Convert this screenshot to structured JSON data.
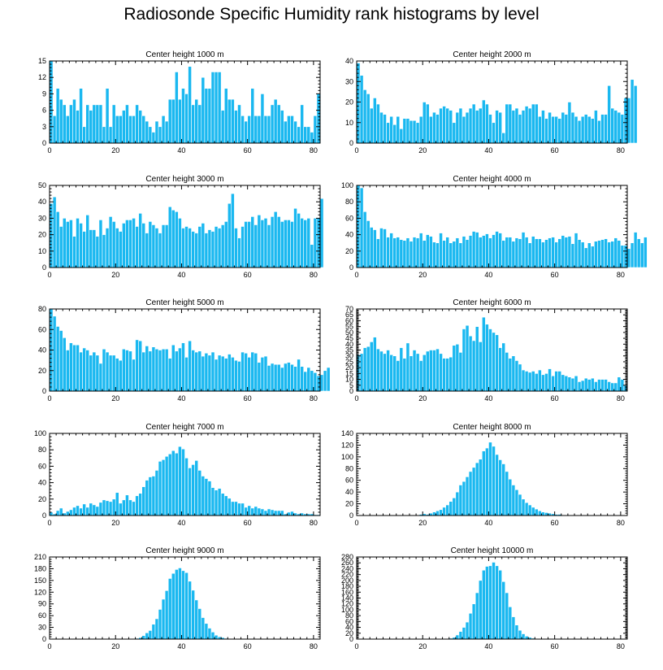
{
  "title": "Radiosonde Specific Humidity rank histograms by level",
  "colors": {
    "bar": "#1ab8f0",
    "bar_edge": "#ffffff",
    "axis": "#000000"
  },
  "chart_data": [
    {
      "type": "bar",
      "title": "Center height 1000 m",
      "xlabel": "",
      "ylabel": "",
      "xlim": [
        0,
        82
      ],
      "xticks": [
        0,
        20,
        40,
        60,
        80
      ],
      "ylim": [
        0,
        15
      ],
      "yticks": [
        0,
        3,
        6,
        9,
        12,
        15
      ],
      "values": [
        15,
        5,
        10,
        8,
        7,
        5,
        7,
        8,
        6,
        10,
        3,
        7,
        6,
        7,
        7,
        7,
        3,
        10,
        3,
        7,
        5,
        5,
        6,
        7,
        5,
        5,
        7,
        6,
        5,
        4,
        3,
        2,
        4,
        3,
        5,
        4,
        8,
        8,
        13,
        8,
        10,
        9,
        14,
        7,
        8,
        7,
        12,
        10,
        10,
        13,
        13,
        13,
        6,
        10,
        8,
        8,
        6,
        7,
        5,
        4,
        5,
        10,
        5,
        5,
        9,
        5,
        5,
        7,
        8,
        7,
        6,
        4,
        5,
        5,
        4,
        3,
        7,
        3,
        3,
        2,
        5,
        9
      ]
    },
    {
      "type": "bar",
      "title": "Center height 2000 m",
      "xlabel": "",
      "ylabel": "",
      "xlim": [
        0,
        82
      ],
      "xticks": [
        0,
        20,
        40,
        60,
        80
      ],
      "ylim": [
        0,
        40
      ],
      "yticks": [
        0,
        10,
        20,
        30,
        40
      ],
      "values": [
        39,
        33,
        26,
        24,
        17,
        22,
        19,
        15,
        14,
        10,
        13,
        9,
        13,
        7,
        12,
        12,
        11,
        11,
        10,
        13,
        20,
        19,
        13,
        15,
        14,
        17,
        18,
        17,
        16,
        10,
        15,
        17,
        13,
        15,
        17,
        19,
        16,
        17,
        21,
        19,
        14,
        10,
        16,
        15,
        5,
        19,
        19,
        16,
        17,
        14,
        16,
        18,
        17,
        19,
        19,
        13,
        16,
        12,
        15,
        13,
        13,
        12,
        15,
        14,
        20,
        15,
        13,
        11,
        13,
        14,
        13,
        12,
        16,
        11,
        14,
        14,
        28,
        17,
        16,
        15,
        14,
        22,
        22,
        31,
        28
      ]
    },
    {
      "type": "bar",
      "title": "Center height 3000 m",
      "xlabel": "",
      "ylabel": "",
      "xlim": [
        0,
        82
      ],
      "xticks": [
        0,
        20,
        40,
        60,
        80
      ],
      "ylim": [
        0,
        50
      ],
      "yticks": [
        0,
        10,
        20,
        30,
        40,
        50
      ],
      "values": [
        39,
        43,
        34,
        25,
        30,
        28,
        29,
        19,
        30,
        27,
        22,
        32,
        23,
        23,
        19,
        29,
        20,
        24,
        31,
        28,
        24,
        22,
        27,
        29,
        29,
        30,
        25,
        33,
        27,
        21,
        28,
        26,
        24,
        21,
        26,
        26,
        37,
        35,
        34,
        30,
        24,
        25,
        24,
        22,
        21,
        25,
        27,
        21,
        23,
        22,
        25,
        24,
        26,
        28,
        39,
        45,
        24,
        18,
        25,
        28,
        28,
        31,
        26,
        32,
        29,
        30,
        26,
        31,
        34,
        31,
        28,
        29,
        29,
        28,
        36,
        33,
        30,
        29,
        30,
        14,
        30,
        30,
        42
      ]
    },
    {
      "type": "bar",
      "title": "Center height 4000 m",
      "xlabel": "",
      "ylabel": "",
      "xlim": [
        0,
        82
      ],
      "xticks": [
        0,
        20,
        40,
        60,
        80
      ],
      "ylim": [
        0,
        100
      ],
      "yticks": [
        0,
        20,
        40,
        60,
        80,
        100
      ],
      "values": [
        100,
        97,
        68,
        57,
        49,
        46,
        35,
        48,
        47,
        37,
        42,
        36,
        37,
        34,
        33,
        36,
        32,
        37,
        36,
        42,
        33,
        40,
        38,
        31,
        30,
        42,
        33,
        37,
        30,
        32,
        36,
        30,
        38,
        34,
        39,
        44,
        43,
        37,
        39,
        41,
        36,
        40,
        44,
        42,
        33,
        37,
        37,
        32,
        36,
        35,
        43,
        37,
        30,
        38,
        35,
        35,
        31,
        34,
        36,
        37,
        31,
        35,
        39,
        37,
        38,
        29,
        42,
        34,
        31,
        24,
        30,
        26,
        32,
        33,
        34,
        35,
        31,
        32,
        36,
        33,
        27,
        27,
        23,
        30,
        43,
        35,
        30,
        37
      ]
    },
    {
      "type": "bar",
      "title": "Center height 5000 m",
      "xlabel": "",
      "ylabel": "",
      "xlim": [
        0,
        82
      ],
      "xticks": [
        0,
        20,
        40,
        60,
        80
      ],
      "ylim": [
        0,
        80
      ],
      "yticks": [
        0,
        20,
        40,
        60,
        80
      ],
      "values": [
        80,
        73,
        63,
        59,
        52,
        40,
        47,
        45,
        45,
        38,
        42,
        40,
        35,
        38,
        35,
        27,
        41,
        38,
        35,
        35,
        32,
        30,
        41,
        40,
        39,
        31,
        50,
        49,
        38,
        44,
        39,
        43,
        41,
        40,
        41,
        41,
        32,
        45,
        39,
        42,
        47,
        33,
        49,
        40,
        38,
        39,
        34,
        37,
        35,
        38,
        31,
        35,
        34,
        32,
        36,
        33,
        30,
        29,
        38,
        37,
        33,
        38,
        37,
        28,
        33,
        34,
        25,
        27,
        26,
        26,
        23,
        27,
        28,
        26,
        24,
        31,
        24,
        19,
        23,
        20,
        18,
        15,
        16,
        20,
        23
      ]
    },
    {
      "type": "bar",
      "title": "Center height 6000 m",
      "xlabel": "",
      "ylabel": "",
      "xlim": [
        0,
        82
      ],
      "xticks": [
        0,
        20,
        40,
        60,
        80
      ],
      "ylim": [
        0,
        70
      ],
      "yticks": [
        0,
        5,
        10,
        15,
        20,
        25,
        30,
        35,
        40,
        45,
        50,
        55,
        60,
        65,
        70
      ],
      "values": [
        31,
        32,
        37,
        38,
        42,
        46,
        36,
        34,
        32,
        35,
        31,
        30,
        26,
        37,
        28,
        41,
        30,
        35,
        32,
        26,
        31,
        34,
        35,
        35,
        36,
        32,
        28,
        28,
        29,
        39,
        40,
        33,
        53,
        56,
        47,
        43,
        55,
        42,
        63,
        57,
        53,
        50,
        48,
        37,
        41,
        33,
        28,
        30,
        26,
        23,
        18,
        17,
        16,
        17,
        15,
        18,
        14,
        15,
        19,
        13,
        17,
        17,
        14,
        13,
        12,
        11,
        13,
        8,
        9,
        11,
        10,
        11,
        8,
        10,
        10,
        10,
        8,
        7,
        7,
        12,
        10,
        5
      ]
    },
    {
      "type": "bar",
      "title": "Center height 7000 m",
      "xlabel": "",
      "ylabel": "",
      "xlim": [
        0,
        82
      ],
      "xticks": [
        0,
        20,
        40,
        60,
        80
      ],
      "ylim": [
        0,
        100
      ],
      "yticks": [
        0,
        20,
        40,
        60,
        80,
        100
      ],
      "values": [
        4,
        2,
        6,
        9,
        3,
        5,
        7,
        10,
        12,
        9,
        14,
        10,
        15,
        13,
        11,
        16,
        19,
        18,
        17,
        20,
        28,
        15,
        19,
        25,
        19,
        17,
        24,
        27,
        35,
        43,
        47,
        48,
        55,
        66,
        68,
        72,
        75,
        79,
        76,
        84,
        81,
        70,
        58,
        62,
        67,
        55,
        48,
        45,
        42,
        34,
        31,
        33,
        27,
        24,
        21,
        17,
        17,
        15,
        15,
        10,
        12,
        9,
        11,
        9,
        8,
        6,
        8,
        7,
        6,
        6,
        6,
        2,
        4,
        5,
        3,
        2,
        3,
        2,
        2,
        2,
        1,
        1
      ]
    },
    {
      "type": "bar",
      "title": "Center height 8000 m",
      "xlabel": "",
      "ylabel": "",
      "xlim": [
        0,
        82
      ],
      "xticks": [
        0,
        20,
        40,
        60,
        80
      ],
      "ylim": [
        0,
        140
      ],
      "yticks": [
        0,
        20,
        40,
        60,
        80,
        100,
        120,
        140
      ],
      "values": [
        0,
        0,
        0,
        0,
        0,
        0,
        0,
        0,
        0,
        0,
        0,
        0,
        0,
        0,
        0,
        1,
        1,
        0,
        1,
        2,
        3,
        2,
        4,
        6,
        8,
        10,
        14,
        18,
        24,
        30,
        40,
        52,
        58,
        66,
        75,
        82,
        90,
        96,
        110,
        115,
        125,
        118,
        104,
        95,
        88,
        75,
        62,
        52,
        44,
        36,
        28,
        22,
        18,
        14,
        11,
        8,
        6,
        5,
        4,
        3,
        2,
        2,
        1,
        1,
        1,
        0,
        0,
        0,
        0,
        0,
        0,
        0,
        0,
        0,
        0,
        0,
        0,
        0,
        0,
        0,
        0,
        0
      ]
    },
    {
      "type": "bar",
      "title": "Center height 9000 m",
      "xlabel": "",
      "ylabel": "",
      "xlim": [
        0,
        82
      ],
      "xticks": [
        0,
        20,
        40,
        60,
        80
      ],
      "ylim": [
        0,
        210
      ],
      "yticks": [
        0,
        30,
        60,
        90,
        120,
        150,
        180,
        210
      ],
      "values": [
        0,
        0,
        0,
        0,
        0,
        0,
        0,
        0,
        0,
        0,
        0,
        0,
        0,
        0,
        0,
        0,
        0,
        0,
        0,
        0,
        0,
        0,
        0,
        0,
        0,
        1,
        2,
        4,
        9,
        16,
        22,
        38,
        52,
        76,
        102,
        124,
        155,
        168,
        178,
        182,
        175,
        170,
        148,
        125,
        100,
        78,
        55,
        40,
        28,
        18,
        10,
        6,
        4,
        2,
        1,
        1,
        0,
        0,
        0,
        0,
        0,
        0,
        0,
        0,
        0,
        0,
        0,
        0,
        0,
        0,
        0,
        0,
        0,
        0,
        0,
        0,
        0,
        0,
        0,
        0,
        0,
        0
      ]
    },
    {
      "type": "bar",
      "title": "Center height 10000 m",
      "xlabel": "",
      "ylabel": "",
      "xlim": [
        0,
        82
      ],
      "xticks": [
        0,
        20,
        40,
        60,
        80
      ],
      "ylim": [
        0,
        280
      ],
      "yticks": [
        0,
        20,
        40,
        60,
        80,
        100,
        120,
        140,
        160,
        180,
        200,
        220,
        240,
        260,
        280
      ],
      "values": [
        0,
        0,
        0,
        0,
        0,
        0,
        0,
        0,
        0,
        0,
        0,
        0,
        0,
        0,
        0,
        0,
        0,
        0,
        0,
        0,
        0,
        0,
        0,
        0,
        0,
        0,
        0,
        1,
        3,
        6,
        14,
        26,
        40,
        58,
        88,
        120,
        158,
        200,
        235,
        248,
        250,
        262,
        250,
        235,
        196,
        158,
        110,
        76,
        48,
        30,
        18,
        10,
        6,
        3,
        2,
        1,
        0,
        0,
        0,
        0,
        0,
        0,
        0,
        0,
        0,
        0,
        0,
        0,
        0,
        0,
        0,
        0,
        0,
        0,
        0,
        0,
        0,
        0,
        0,
        0,
        0,
        0
      ]
    }
  ]
}
